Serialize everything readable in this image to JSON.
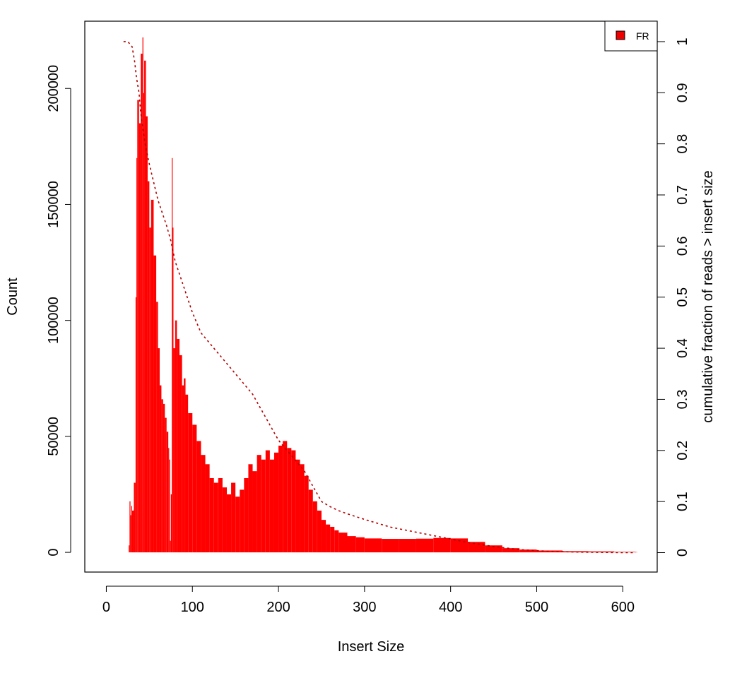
{
  "chart_data": {
    "type": "bar",
    "xlabel": "Insert Size",
    "ylabel": "Count",
    "y2label": "cumulative fraction of reads > insert size",
    "xlim": [
      -25,
      640
    ],
    "ylim": [
      -8500,
      229000
    ],
    "y2lim": [
      -0.038,
      1.04
    ],
    "xticks": [
      0,
      100,
      200,
      300,
      400,
      500,
      600
    ],
    "yticks": [
      0,
      50000,
      100000,
      150000,
      200000
    ],
    "y2ticks": [
      0,
      0.1,
      0.2,
      0.3,
      0.4,
      0.5,
      0.6,
      0.7,
      0.8,
      0.9,
      1
    ],
    "grid": false,
    "legend": {
      "placement": "top-right",
      "entries": [
        "FR"
      ]
    },
    "colors": {
      "bars": "#ff0000",
      "curve": "#b20000",
      "legend_swatch": "#ee0000"
    },
    "series": [
      {
        "name": "FR",
        "kind": "histogram",
        "x": [
          20,
          24,
          26,
          27,
          28,
          29,
          30,
          32,
          34,
          35,
          36,
          38,
          40,
          42,
          43,
          44,
          46,
          48,
          50,
          52,
          55,
          58,
          60,
          62,
          64,
          66,
          68,
          70,
          72,
          73,
          74,
          75,
          76,
          77,
          78,
          80,
          82,
          85,
          88,
          90,
          92,
          95,
          100,
          105,
          110,
          115,
          120,
          125,
          130,
          135,
          140,
          145,
          150,
          155,
          160,
          165,
          170,
          175,
          180,
          185,
          190,
          195,
          200,
          205,
          210,
          215,
          220,
          225,
          230,
          235,
          240,
          245,
          250,
          255,
          260,
          265,
          270,
          280,
          290,
          300,
          320,
          340,
          360,
          380,
          400,
          420,
          440,
          460,
          480,
          500,
          530,
          560,
          590,
          615
        ],
        "values": [
          0,
          0,
          3000,
          22000,
          16000,
          20000,
          18000,
          30000,
          110000,
          170000,
          195000,
          185000,
          215000,
          222000,
          198000,
          212000,
          188000,
          160000,
          140000,
          152000,
          128000,
          108000,
          88000,
          72000,
          66000,
          64000,
          58000,
          52000,
          45000,
          40000,
          5000,
          25000,
          170000,
          140000,
          88000,
          100000,
          92000,
          85000,
          72000,
          75000,
          68000,
          60000,
          55000,
          48000,
          42000,
          38000,
          32000,
          30000,
          32000,
          28000,
          25000,
          30000,
          24000,
          27000,
          32000,
          38000,
          35000,
          42000,
          40000,
          44000,
          40000,
          43000,
          46000,
          48000,
          45000,
          44000,
          40000,
          38000,
          33000,
          27000,
          22000,
          18000,
          14000,
          12000,
          11000,
          9500,
          8500,
          7000,
          6500,
          6000,
          5800,
          5800,
          5900,
          6200,
          6000,
          4500,
          3000,
          1800,
          1200,
          800,
          500,
          400,
          200,
          100
        ]
      },
      {
        "name": "",
        "kind": "cumulative_fraction",
        "axis": "right",
        "x": [
          20,
          25,
          30,
          33,
          35,
          38,
          40,
          45,
          50,
          60,
          70,
          75,
          80,
          90,
          100,
          110,
          120,
          130,
          140,
          150,
          160,
          170,
          180,
          190,
          200,
          210,
          220,
          230,
          240,
          250,
          260,
          270,
          280,
          300,
          330,
          360,
          390,
          420,
          450,
          480,
          510,
          550,
          600,
          615
        ],
        "values": [
          1.0,
          1.0,
          0.99,
          0.96,
          0.93,
          0.9,
          0.86,
          0.8,
          0.76,
          0.69,
          0.64,
          0.61,
          0.57,
          0.52,
          0.47,
          0.43,
          0.41,
          0.39,
          0.37,
          0.35,
          0.33,
          0.31,
          0.28,
          0.25,
          0.22,
          0.2,
          0.18,
          0.16,
          0.13,
          0.1,
          0.09,
          0.082,
          0.076,
          0.065,
          0.05,
          0.04,
          0.03,
          0.02,
          0.012,
          0.006,
          0.003,
          0.001,
          0.0,
          0.0
        ]
      }
    ]
  }
}
